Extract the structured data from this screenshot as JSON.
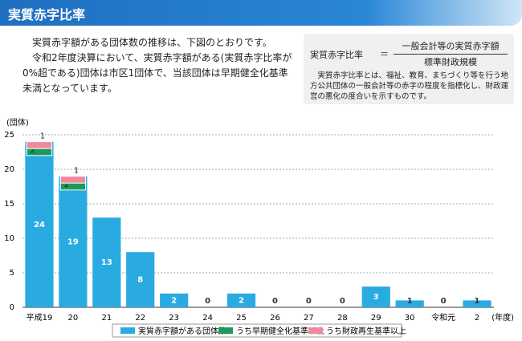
{
  "header": {
    "title": "実質赤字比率"
  },
  "intro": [
    "実質赤字額がある団体数の推移は、下図のとおりです。",
    "令和2年度決算において、実質赤字額がある(実質赤字比率が0%超である)団体は市区1団体で、当該団体は早期健全化基準未満となっています。"
  ],
  "formula": {
    "left": "実質赤字比率",
    "eq": "＝",
    "numerator": "一般会計等の実質赤字額",
    "denominator": "標準財政規模",
    "note": "実質赤字比率とは、福祉、教育、まちづくり等を行う地方公共団体の一般会計等の赤字の程度を指標化し、財政運営の悪化の度合いを示すものです。"
  },
  "chart_data": {
    "type": "bar",
    "y_label": "(団体)",
    "x_label": "(年度)",
    "categories": [
      "平成19",
      "20",
      "21",
      "22",
      "23",
      "24",
      "25",
      "26",
      "27",
      "28",
      "29",
      "30",
      "令和元",
      "2"
    ],
    "series": [
      {
        "name": "実質赤字額がある団体数",
        "color": "#29abe2",
        "values": [
          24,
          19,
          13,
          8,
          2,
          0,
          2,
          0,
          0,
          0,
          3,
          1,
          0,
          1
        ]
      },
      {
        "name": "うち早期健全化基準以上",
        "color": "#1b9a5c",
        "values": [
          2,
          2,
          0,
          0,
          0,
          0,
          0,
          0,
          0,
          0,
          0,
          0,
          0,
          0
        ]
      },
      {
        "name": "うち財政再生基準以上",
        "color": "#ef8a9e",
        "values": [
          1,
          1,
          0,
          0,
          0,
          0,
          0,
          0,
          0,
          0,
          0,
          0,
          0,
          0
        ]
      }
    ],
    "ylim": [
      0,
      25
    ],
    "yticks": [
      0,
      5,
      10,
      15,
      20,
      25
    ],
    "grid": true
  }
}
